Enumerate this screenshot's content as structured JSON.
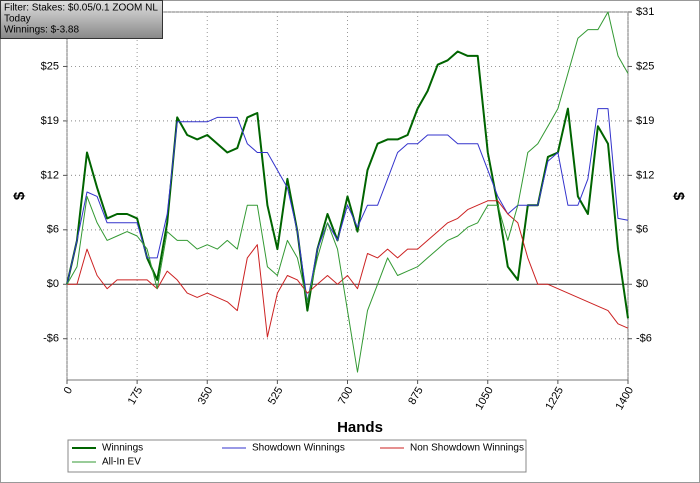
{
  "filter_box": {
    "lines": [
      "Filter: Stakes: $0.05/0.1 ZOOM NL",
      "Today",
      "Winnings: $-3.88"
    ]
  },
  "chart_data": {
    "type": "line",
    "xlabel": "Hands",
    "ylabel": "$",
    "y2label": "$",
    "x": [
      0,
      25,
      50,
      75,
      100,
      125,
      150,
      175,
      200,
      225,
      250,
      275,
      300,
      325,
      350,
      375,
      400,
      425,
      450,
      475,
      500,
      525,
      550,
      575,
      600,
      625,
      650,
      675,
      700,
      725,
      750,
      775,
      800,
      825,
      850,
      875,
      900,
      925,
      950,
      975,
      1000,
      1025,
      1050,
      1075,
      1100,
      1125,
      1150,
      1175,
      1200,
      1225,
      1250,
      1275,
      1300,
      1325,
      1350,
      1375,
      1400
    ],
    "xlim": [
      0,
      1400
    ],
    "xticks": [
      0,
      175,
      350,
      525,
      700,
      875,
      1050,
      1225,
      1400
    ],
    "ylim": [
      -10.9,
      31
    ],
    "yticks": [
      {
        "value": -6.2,
        "label": "-$6"
      },
      {
        "value": 0,
        "label": "$0"
      },
      {
        "value": 6.2,
        "label": "$6"
      },
      {
        "value": 12.4,
        "label": "$12"
      },
      {
        "value": 18.6,
        "label": "$19"
      },
      {
        "value": 24.8,
        "label": "$25"
      }
    ],
    "y2lim": [
      -10.9,
      31
    ],
    "y2ticks": [
      {
        "value": -6.2,
        "label": "-$6"
      },
      {
        "value": 0,
        "label": "$0"
      },
      {
        "value": 6.2,
        "label": "$6"
      },
      {
        "value": 12.4,
        "label": "$12"
      },
      {
        "value": 18.6,
        "label": "$19"
      },
      {
        "value": 24.8,
        "label": "$25"
      },
      {
        "value": 31,
        "label": "$31"
      }
    ],
    "grid": true,
    "series": [
      {
        "name": "Winnings",
        "color": "#006400",
        "width": 2,
        "values": [
          0,
          5,
          15,
          11,
          7.5,
          8,
          8,
          7.5,
          3,
          0.5,
          7,
          19,
          17,
          16.5,
          17,
          16,
          15,
          15.5,
          19,
          19.5,
          9,
          4,
          12,
          6,
          -3,
          4,
          8,
          5,
          10,
          6,
          13,
          16,
          16.5,
          16.5,
          17,
          20,
          22,
          25,
          25.5,
          26.5,
          26,
          26,
          15,
          9,
          2,
          0.5,
          9,
          9,
          14.5,
          15,
          20,
          10,
          8,
          18,
          16,
          4,
          -3.88
        ]
      },
      {
        "name": "Showdown Winnings",
        "color": "#3333cc",
        "width": 1,
        "values": [
          0,
          5,
          10.5,
          10,
          7,
          7,
          7,
          7,
          3,
          3,
          8,
          18.5,
          18.5,
          18.5,
          18.5,
          19,
          19,
          19,
          16,
          15,
          15,
          13,
          11,
          6,
          -2,
          4,
          7,
          5,
          9,
          6.5,
          9,
          9,
          12,
          15,
          16,
          16,
          17,
          17,
          17,
          16,
          16,
          16,
          13,
          10,
          8,
          9,
          9,
          9,
          14,
          15,
          9,
          9,
          12,
          20,
          20,
          7.5,
          7.3
        ]
      },
      {
        "name": "Non Showdown Winnings",
        "color": "#cc2222",
        "width": 1,
        "values": [
          0,
          0,
          4,
          1,
          -0.5,
          0.5,
          0.5,
          0.5,
          0.5,
          -0.5,
          1.5,
          0.5,
          -1,
          -1.5,
          -1,
          -1.5,
          -2,
          -3,
          3,
          4.5,
          -6,
          -1,
          1,
          0.5,
          -1,
          0,
          1,
          0,
          1,
          -0.5,
          3.5,
          3,
          4,
          3,
          4,
          4,
          5,
          6,
          7,
          7.5,
          8.5,
          9,
          9.5,
          9.5,
          8,
          7,
          3,
          0,
          0,
          -0.5,
          -1,
          -1.5,
          -2,
          -2.5,
          -3,
          -4.5,
          -5
        ]
      },
      {
        "name": "All-In EV",
        "color": "#339933",
        "width": 1,
        "values": [
          0,
          2,
          10,
          7,
          5,
          5.5,
          6,
          5.5,
          4,
          -0.5,
          6,
          5,
          5,
          4,
          4.5,
          4,
          5,
          4,
          9,
          9,
          2,
          1,
          5,
          3,
          -2,
          3,
          7,
          4,
          -3,
          -10,
          -3,
          0,
          3,
          1,
          1.5,
          2,
          3,
          4,
          5,
          5.5,
          6.5,
          7,
          9,
          9,
          5,
          9,
          15,
          16,
          18,
          20,
          24,
          28,
          29,
          29,
          31,
          26,
          24
        ]
      }
    ]
  }
}
